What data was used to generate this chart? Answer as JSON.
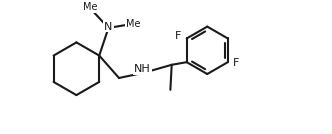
{
  "background_color": "#ffffff",
  "line_color": "#1a1a1a",
  "line_width": 1.5,
  "fig_width": 3.32,
  "fig_height": 1.34,
  "dpi": 100,
  "font_size": 7.5,
  "atoms": {
    "N_label": "N",
    "NH_label": "NH",
    "F1_label": "F",
    "F2_label": "F",
    "Me1_label": "Me",
    "Me2_label": "Me"
  },
  "xlim": [
    0.0,
    9.5
  ],
  "ylim": [
    -2.5,
    2.5
  ]
}
